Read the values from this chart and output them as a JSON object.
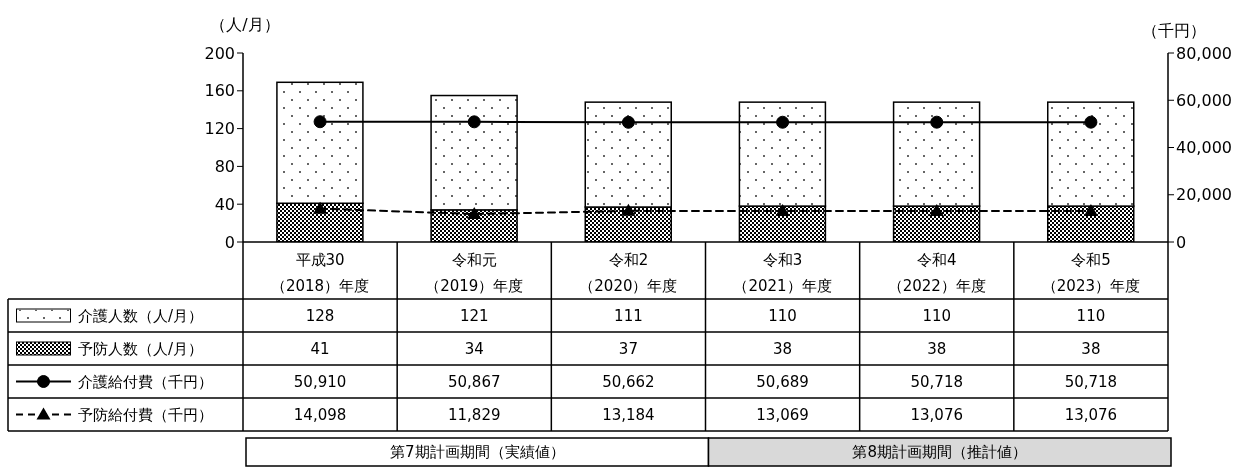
{
  "chart_data": {
    "type": "bar",
    "stacked": true,
    "ylabel": "（人/月）",
    "y2label": "（千円）",
    "categories": [
      "平成30（2018）年度",
      "令和元（2019）年度",
      "令和2（2020）年度",
      "令和3（2021）年度",
      "令和4（2022）年度",
      "令和5（2023）年度"
    ],
    "series": [
      {
        "name": "予防人数（人/月）",
        "color": "#000000",
        "values": [
          41,
          34,
          37,
          38,
          38,
          38
        ],
        "value_labels": [
          "41",
          "34",
          "37",
          "38",
          "38",
          "38"
        ]
      },
      {
        "name": "介護人数（人/月）",
        "color": "#ffffff",
        "values": [
          128,
          121,
          111,
          110,
          110,
          110
        ],
        "value_labels": [
          "128",
          "121",
          "111",
          "110",
          "110",
          "110"
        ]
      },
      {
        "name": "介護給付費（千円）",
        "type": "line",
        "axis": "y2",
        "color": "#000000",
        "marker": "circle",
        "line_style": "solid",
        "values": [
          50910,
          50867,
          50662,
          50689,
          50718,
          50718
        ],
        "value_labels": [
          "50,910",
          "50,867",
          "50,662",
          "50,689",
          "50,718",
          "50,718"
        ]
      },
      {
        "name": "予防給付費（千円）",
        "type": "line",
        "axis": "y2",
        "color": "#000000",
        "marker": "triangle",
        "line_style": "dashed",
        "values": [
          14098,
          11829,
          13184,
          13069,
          13076,
          13076
        ],
        "value_labels": [
          "14,098",
          "11,829",
          "13,184",
          "13,069",
          "13,076",
          "13,076"
        ]
      }
    ],
    "ylim": [
      0,
      200
    ],
    "yticks": [
      0,
      40,
      80,
      120,
      160,
      200
    ],
    "y2lim": [
      0,
      80000
    ],
    "y2ticks": [
      0,
      {
        "value": 20000,
        "label": "20,000"
      },
      {
        "value": 40000,
        "label": "40,000"
      },
      {
        "value": 60000,
        "label": "60,000"
      },
      {
        "value": 80000,
        "label": "80,000"
      }
    ],
    "legend": "bottom",
    "annotations": [
      "第7期計画期間（実績値）",
      "第8期計画期間（推計値）"
    ]
  }
}
